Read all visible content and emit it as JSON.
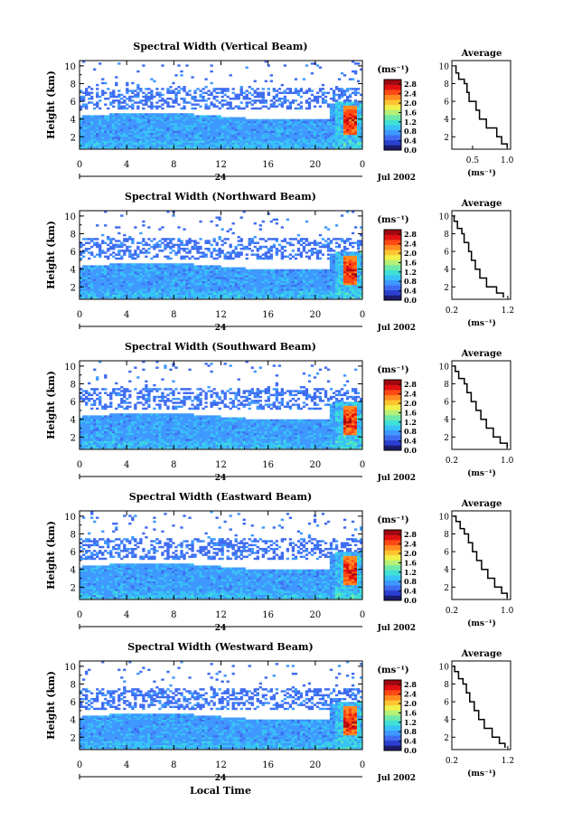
{
  "figure": {
    "xlabel": "Local Time",
    "date_label": "Jul 2002",
    "day_label": "24",
    "unit_label": "(ms⁻¹)",
    "average_title": "Average",
    "average_unit": "(ms⁻¹)",
    "colormap": [
      "#1b1b6b",
      "#2a3fd0",
      "#3f6cf0",
      "#3f98ff",
      "#38c2f5",
      "#3fe0d5",
      "#6fe8a8",
      "#b4f078",
      "#f0f04a",
      "#ffc530",
      "#ff8a20",
      "#ff4a14",
      "#e01010",
      "#a00810"
    ]
  },
  "chart_data": [
    {
      "type": "heatmap",
      "title": "Spectral Width (Vertical Beam)",
      "ylabel": "Height (km)",
      "xlabel": "",
      "x_ticks": [
        "0",
        "4",
        "8",
        "12",
        "16",
        "20",
        "0"
      ],
      "y_ticks": [
        "2",
        "4",
        "6",
        "8",
        "10"
      ],
      "xlim": [
        0,
        24
      ],
      "ylim": [
        0.6,
        10.6
      ],
      "colorbar_ticks": [
        "2.8",
        "2.4",
        "2.0",
        "1.6",
        "1.2",
        "0.8",
        "0.4",
        "0.0"
      ],
      "clim": [
        0,
        3.0
      ],
      "average": {
        "title": "Average",
        "x_ticks": [
          "0.5",
          "1.0"
        ],
        "y_ticks": [
          "2",
          "4",
          "6",
          "8",
          "10"
        ],
        "xlim": [
          0.2,
          1.05
        ],
        "ylim": [
          0.6,
          10.6
        ],
        "x": [
          0.25,
          0.26,
          0.3,
          0.38,
          0.42,
          0.45,
          0.55,
          0.6,
          0.7,
          0.85,
          0.92,
          1.0
        ],
        "y": [
          10.0,
          9.2,
          8.5,
          8.0,
          7.0,
          6.0,
          5.0,
          4.0,
          3.0,
          2.0,
          1.2,
          0.8
        ]
      }
    },
    {
      "type": "heatmap",
      "title": "Spectral Width (Northward Beam)",
      "ylabel": "Height (km)",
      "xlabel": "",
      "x_ticks": [
        "0",
        "4",
        "8",
        "12",
        "16",
        "20",
        "0"
      ],
      "y_ticks": [
        "2",
        "4",
        "6",
        "8",
        "10"
      ],
      "xlim": [
        0,
        24
      ],
      "ylim": [
        0.6,
        10.6
      ],
      "colorbar_ticks": [
        "2.8",
        "2.4",
        "2.0",
        "1.6",
        "1.2",
        "0.8",
        "0.4",
        "0.0"
      ],
      "clim": [
        0,
        3.0
      ],
      "average": {
        "title": "Average",
        "x_ticks": [
          "0.2",
          "1.2"
        ],
        "y_ticks": [
          "2",
          "4",
          "6",
          "8",
          "10"
        ],
        "xlim": [
          0.2,
          1.25
        ],
        "ylim": [
          0.6,
          10.6
        ],
        "x": [
          0.22,
          0.24,
          0.3,
          0.38,
          0.42,
          0.5,
          0.55,
          0.62,
          0.7,
          0.82,
          1.0,
          1.12
        ],
        "y": [
          10.0,
          9.4,
          8.6,
          8.0,
          7.0,
          6.0,
          5.0,
          4.0,
          3.0,
          2.0,
          1.3,
          0.8
        ]
      }
    },
    {
      "type": "heatmap",
      "title": "Spectral Width (Southward Beam)",
      "ylabel": "Height (km)",
      "xlabel": "",
      "x_ticks": [
        "0",
        "4",
        "8",
        "12",
        "16",
        "20",
        "0"
      ],
      "y_ticks": [
        "2",
        "4",
        "6",
        "8",
        "10"
      ],
      "xlim": [
        0,
        24
      ],
      "ylim": [
        0.6,
        10.6
      ],
      "colorbar_ticks": [
        "2.8",
        "2.4",
        "2.0",
        "1.6",
        "1.2",
        "0.8",
        "0.4",
        "0.0"
      ],
      "clim": [
        0,
        3.0
      ],
      "average": {
        "title": "Average",
        "x_ticks": [
          "0.2",
          "1.0"
        ],
        "y_ticks": [
          "2",
          "4",
          "6",
          "8",
          "10"
        ],
        "xlim": [
          0.2,
          1.05
        ],
        "ylim": [
          0.6,
          10.6
        ],
        "x": [
          0.22,
          0.25,
          0.3,
          0.38,
          0.42,
          0.48,
          0.55,
          0.62,
          0.7,
          0.8,
          0.9,
          1.0
        ],
        "y": [
          10.0,
          9.4,
          8.6,
          8.0,
          7.0,
          6.0,
          5.0,
          4.0,
          3.0,
          2.0,
          1.3,
          0.8
        ]
      }
    },
    {
      "type": "heatmap",
      "title": "Spectral Width (Eastward Beam)",
      "ylabel": "Height (km)",
      "xlabel": "",
      "x_ticks": [
        "0",
        "4",
        "8",
        "12",
        "16",
        "20",
        "0"
      ],
      "y_ticks": [
        "2",
        "4",
        "6",
        "8",
        "10"
      ],
      "xlim": [
        0,
        24
      ],
      "ylim": [
        0.6,
        10.6
      ],
      "colorbar_ticks": [
        "2.8",
        "2.4",
        "2.0",
        "1.6",
        "1.2",
        "0.8",
        "0.4",
        "0.0"
      ],
      "clim": [
        0,
        3.0
      ],
      "average": {
        "title": "Average",
        "x_ticks": [
          "0.2",
          "1.0"
        ],
        "y_ticks": [
          "2",
          "4",
          "6",
          "8",
          "10"
        ],
        "xlim": [
          0.2,
          1.05
        ],
        "ylim": [
          0.6,
          10.6
        ],
        "x": [
          0.22,
          0.26,
          0.32,
          0.38,
          0.44,
          0.5,
          0.56,
          0.63,
          0.72,
          0.82,
          0.92,
          1.0
        ],
        "y": [
          10.0,
          9.4,
          8.6,
          8.0,
          7.0,
          6.0,
          5.0,
          4.0,
          3.0,
          2.0,
          1.3,
          0.8
        ]
      }
    },
    {
      "type": "heatmap",
      "title": "Spectral Width (Westward Beam)",
      "ylabel": "Height (km)",
      "xlabel": "Local Time",
      "x_ticks": [
        "0",
        "4",
        "8",
        "12",
        "16",
        "20",
        "0"
      ],
      "y_ticks": [
        "2",
        "4",
        "6",
        "8",
        "10"
      ],
      "xlim": [
        0,
        24
      ],
      "ylim": [
        0.6,
        10.6
      ],
      "colorbar_ticks": [
        "2.8",
        "2.4",
        "2.0",
        "1.6",
        "1.2",
        "0.8",
        "0.4",
        "0.0"
      ],
      "clim": [
        0,
        3.0
      ],
      "average": {
        "title": "Average",
        "x_ticks": [
          "0.2",
          "1.2"
        ],
        "y_ticks": [
          "2",
          "4",
          "6",
          "8",
          "10"
        ],
        "xlim": [
          0.2,
          1.25
        ],
        "ylim": [
          0.6,
          10.6
        ],
        "x": [
          0.22,
          0.25,
          0.32,
          0.4,
          0.46,
          0.52,
          0.6,
          0.68,
          0.78,
          0.92,
          1.05,
          1.15
        ],
        "y": [
          10.0,
          9.4,
          8.6,
          8.0,
          7.0,
          6.0,
          5.0,
          4.0,
          3.0,
          2.0,
          1.3,
          0.8
        ]
      }
    }
  ]
}
